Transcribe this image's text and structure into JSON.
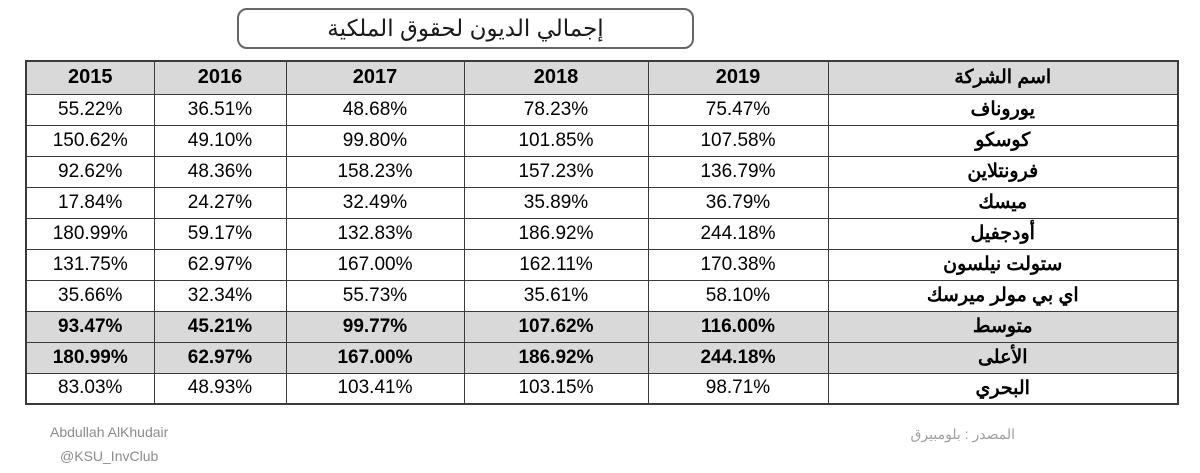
{
  "title": "إجمالي الديون لحقوق الملكية",
  "table": {
    "headers": [
      "2015",
      "2016",
      "2017",
      "2018",
      "2019",
      "اسم الشركة"
    ],
    "rows": [
      {
        "company": "يوروناف",
        "values": [
          "55.22%",
          "36.51%",
          "48.68%",
          "78.23%",
          "75.47%"
        ],
        "emphasis": false
      },
      {
        "company": "كوسكو",
        "values": [
          "150.62%",
          "49.10%",
          "99.80%",
          "101.85%",
          "107.58%"
        ],
        "emphasis": false
      },
      {
        "company": "فرونتلاين",
        "values": [
          "92.62%",
          "48.36%",
          "158.23%",
          "157.23%",
          "136.79%"
        ],
        "emphasis": false
      },
      {
        "company": "ميسك",
        "values": [
          "17.84%",
          "24.27%",
          "32.49%",
          "35.89%",
          "36.79%"
        ],
        "emphasis": false
      },
      {
        "company": "أودجفيل",
        "values": [
          "180.99%",
          "59.17%",
          "132.83%",
          "186.92%",
          "244.18%"
        ],
        "emphasis": false
      },
      {
        "company": "ستولت نيلسون",
        "values": [
          "131.75%",
          "62.97%",
          "167.00%",
          "162.11%",
          "170.38%"
        ],
        "emphasis": false
      },
      {
        "company": "اي بي مولر ميرسك",
        "values": [
          "35.66%",
          "32.34%",
          "55.73%",
          "35.61%",
          "58.10%"
        ],
        "emphasis": false
      },
      {
        "company": "متوسط",
        "values": [
          "93.47%",
          "45.21%",
          "99.77%",
          "107.62%",
          "116.00%"
        ],
        "emphasis": true
      },
      {
        "company": "الأعلى",
        "values": [
          "180.99%",
          "62.97%",
          "167.00%",
          "186.92%",
          "244.18%"
        ],
        "emphasis": true
      },
      {
        "company": "البحري",
        "values": [
          "83.03%",
          "48.93%",
          "103.41%",
          "103.15%",
          "98.71%"
        ],
        "emphasis": false
      }
    ]
  },
  "footer": {
    "credit_name": "Abdullah AlKhudair",
    "credit_handle": "@KSU_InvClub",
    "source": "المصدر : بلومبيرق"
  },
  "colors": {
    "header_bg": "#D9D9D9",
    "emphasis_bg": "#D9D9D9",
    "border": "#3b3b3b",
    "credit_text": "#8c8c8c",
    "source_text": "#9f9f9f"
  },
  "chart_data": {
    "type": "table",
    "title": "إجمالي الديون لحقوق الملكية",
    "unit": "%",
    "columns": [
      "2015",
      "2016",
      "2017",
      "2018",
      "2019"
    ],
    "rows": [
      {
        "name": "يوروناف",
        "values": [
          55.22,
          36.51,
          48.68,
          78.23,
          75.47
        ]
      },
      {
        "name": "كوسكو",
        "values": [
          150.62,
          49.1,
          99.8,
          101.85,
          107.58
        ]
      },
      {
        "name": "فرونتلاين",
        "values": [
          92.62,
          48.36,
          158.23,
          157.23,
          136.79
        ]
      },
      {
        "name": "ميسك",
        "values": [
          17.84,
          24.27,
          32.49,
          35.89,
          36.79
        ]
      },
      {
        "name": "أودجفيل",
        "values": [
          180.99,
          59.17,
          132.83,
          186.92,
          244.18
        ]
      },
      {
        "name": "ستولت نيلسون",
        "values": [
          131.75,
          62.97,
          167.0,
          162.11,
          170.38
        ]
      },
      {
        "name": "اي بي مولر ميرسك",
        "values": [
          35.66,
          32.34,
          55.73,
          35.61,
          58.1
        ]
      },
      {
        "name": "متوسط",
        "values": [
          93.47,
          45.21,
          99.77,
          107.62,
          116.0
        ]
      },
      {
        "name": "الأعلى",
        "values": [
          180.99,
          62.97,
          167.0,
          186.92,
          244.18
        ]
      },
      {
        "name": "البحري",
        "values": [
          83.03,
          48.93,
          103.41,
          103.15,
          98.71
        ]
      }
    ]
  }
}
